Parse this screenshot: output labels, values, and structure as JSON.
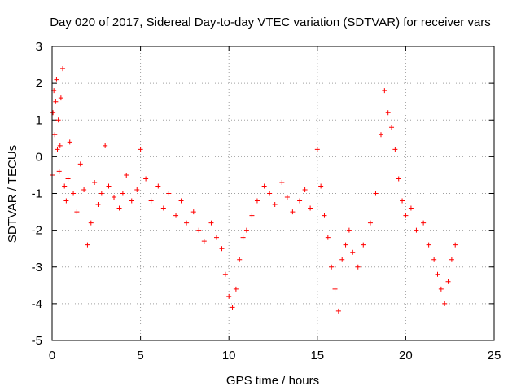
{
  "chart_data": {
    "type": "scatter",
    "title": "Day 020 of 2017, Sidereal Day-to-day VTEC variation (SDTVAR) for receiver vars",
    "xlabel": "GPS time / hours",
    "ylabel": "SDTVAR / TECUs",
    "xlim": [
      0,
      25
    ],
    "ylim": [
      -5,
      3
    ],
    "xticks": [
      "0",
      "5",
      "10",
      "15",
      "20",
      "25"
    ],
    "yticks": [
      "3",
      "2",
      "1",
      "0",
      "-1",
      "-2",
      "-3",
      "-4",
      "-5"
    ],
    "grid": true,
    "marker": "plus",
    "color": "#ff0000",
    "series": [
      {
        "name": "vars",
        "x": [
          0.0,
          0.05,
          0.1,
          0.15,
          0.2,
          0.25,
          0.3,
          0.35,
          0.4,
          0.45,
          0.5,
          0.6,
          0.7,
          0.8,
          0.9,
          1.0,
          1.2,
          1.4,
          1.6,
          1.8,
          2.0,
          2.2,
          2.4,
          2.6,
          2.8,
          3.0,
          3.2,
          3.5,
          3.8,
          4.0,
          4.2,
          4.5,
          4.8,
          5.0,
          5.3,
          5.6,
          6.0,
          6.3,
          6.6,
          7.0,
          7.3,
          7.6,
          8.0,
          8.3,
          8.6,
          9.0,
          9.3,
          9.6,
          9.8,
          10.0,
          10.2,
          10.4,
          10.6,
          10.8,
          11.0,
          11.3,
          11.6,
          12.0,
          12.3,
          12.6,
          13.0,
          13.3,
          13.6,
          14.0,
          14.3,
          14.6,
          15.0,
          15.2,
          15.4,
          15.6,
          15.8,
          16.0,
          16.2,
          16.4,
          16.6,
          16.8,
          17.0,
          17.3,
          17.6,
          18.0,
          18.3,
          18.6,
          18.8,
          19.0,
          19.2,
          19.4,
          19.6,
          19.8,
          20.0,
          20.3,
          20.6,
          21.0,
          21.3,
          21.6,
          21.8,
          22.0,
          22.2,
          22.4,
          22.6,
          22.8
        ],
        "y": [
          -0.5,
          1.2,
          1.8,
          0.6,
          1.5,
          2.1,
          0.2,
          1.0,
          -0.4,
          0.3,
          1.6,
          2.4,
          -0.8,
          -1.2,
          -0.6,
          0.4,
          -1.0,
          -1.5,
          -0.2,
          -0.9,
          -2.4,
          -1.8,
          -0.7,
          -1.3,
          -1.0,
          0.3,
          -0.8,
          -1.1,
          -1.4,
          -1.0,
          -0.5,
          -1.2,
          -0.9,
          0.2,
          -0.6,
          -1.2,
          -0.8,
          -1.4,
          -1.0,
          -1.6,
          -1.2,
          -1.8,
          -1.5,
          -2.0,
          -2.3,
          -1.8,
          -2.2,
          -2.5,
          -3.2,
          -3.8,
          -4.1,
          -3.6,
          -2.8,
          -2.2,
          -2.0,
          -1.6,
          -1.2,
          -0.8,
          -1.0,
          -1.3,
          -0.7,
          -1.1,
          -1.5,
          -1.2,
          -0.9,
          -1.4,
          0.2,
          -0.8,
          -1.6,
          -2.2,
          -3.0,
          -3.6,
          -4.2,
          -2.8,
          -2.4,
          -2.0,
          -2.6,
          -3.0,
          -2.4,
          -1.8,
          -1.0,
          0.6,
          1.8,
          1.2,
          0.8,
          0.2,
          -0.6,
          -1.2,
          -1.6,
          -1.4,
          -2.0,
          -1.8,
          -2.4,
          -2.8,
          -3.2,
          -3.6,
          -4.0,
          -3.4,
          -2.8,
          -2.4
        ]
      }
    ]
  }
}
